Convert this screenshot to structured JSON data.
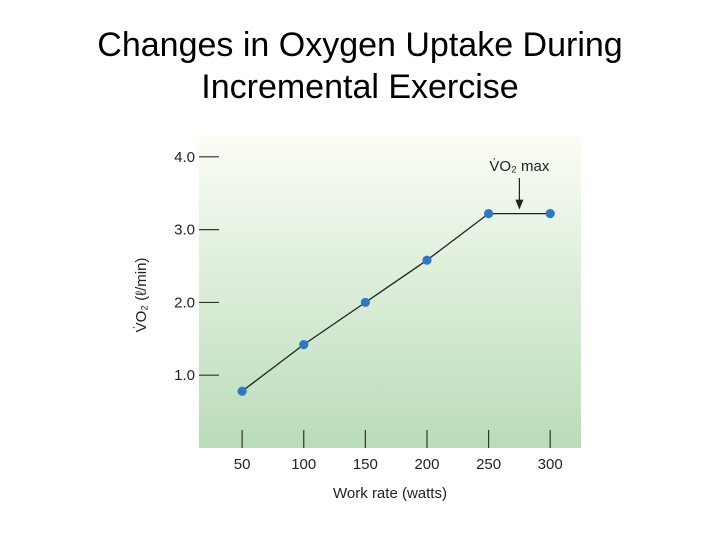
{
  "slide": {
    "title_line1": "Changes in Oxygen Uptake During",
    "title_line2": "Incremental Exercise"
  },
  "chart_data": {
    "type": "line",
    "xlabel": "Work rate (watts)",
    "ylabel": "V̇O₂ (ℓ/min)",
    "x_ticks": [
      50,
      100,
      150,
      200,
      250,
      300
    ],
    "y_ticks": [
      1.0,
      2.0,
      3.0,
      4.0
    ],
    "x_tick_labels": [
      "50",
      "100",
      "150",
      "200",
      "250",
      "300"
    ],
    "y_tick_labels": [
      "1.0",
      "2.0",
      "3.0",
      "4.0"
    ],
    "xlim": [
      15,
      325
    ],
    "ylim": [
      0,
      4.3
    ],
    "series": [
      {
        "x": [
          50,
          100,
          150,
          200,
          250,
          300
        ],
        "y": [
          0.78,
          1.42,
          2.0,
          2.58,
          3.22,
          3.22
        ],
        "color": "#2f78c4"
      }
    ],
    "annotation": {
      "label": "V̇O₂ max",
      "x": 275,
      "y": 3.22
    },
    "background_gradient": [
      "#fbfdf6",
      "#b9dcb9"
    ]
  }
}
